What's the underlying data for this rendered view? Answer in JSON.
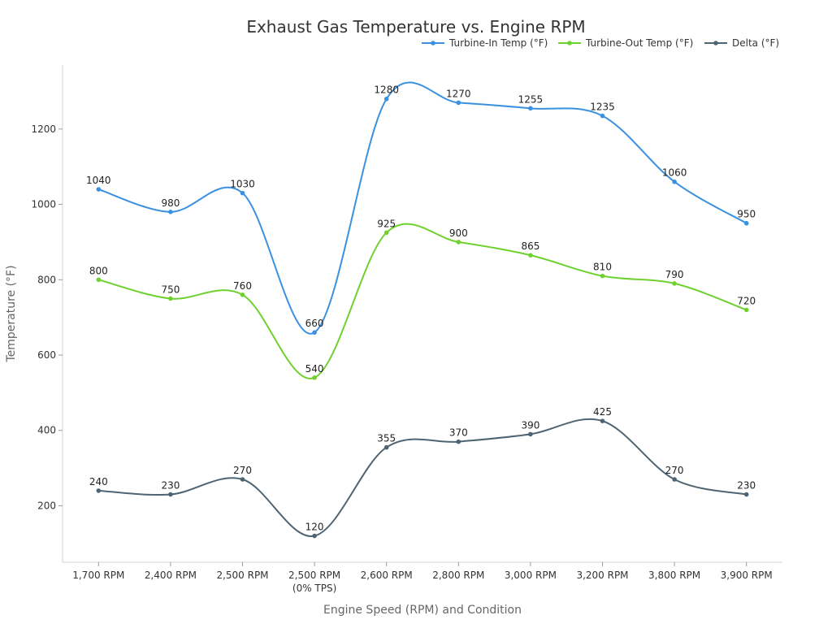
{
  "chart_data": {
    "type": "line",
    "title": "Exhaust Gas Temperature vs. Engine RPM",
    "xlabel": "Engine Speed (RPM) and Condition",
    "ylabel": "Temperature (°F)",
    "categories": [
      [
        "1,700 RPM"
      ],
      [
        "2,400 RPM"
      ],
      [
        "2,500 RPM"
      ],
      [
        "2,500 RPM",
        "(0% TPS)"
      ],
      [
        "2,600 RPM"
      ],
      [
        "2,800 RPM"
      ],
      [
        "3,000 RPM"
      ],
      [
        "3,200 RPM"
      ],
      [
        "3,800 RPM"
      ],
      [
        "3,900 RPM"
      ]
    ],
    "ylim": [
      50,
      1370
    ],
    "yticks": [
      200,
      400,
      600,
      800,
      1000,
      1200
    ],
    "grid": false,
    "legend_position": "top-right",
    "series": [
      {
        "name": "Turbine-In Temp (°F)",
        "color": "#3b91e0",
        "values": [
          1040,
          980,
          1030,
          660,
          1280,
          1270,
          1255,
          1235,
          1060,
          950
        ]
      },
      {
        "name": "Turbine-Out Temp (°F)",
        "color": "#6fd12f",
        "values": [
          800,
          750,
          760,
          540,
          925,
          900,
          865,
          810,
          790,
          720
        ]
      },
      {
        "name": "Delta (°F)",
        "color": "#4f6472",
        "values": [
          240,
          230,
          270,
          120,
          355,
          370,
          390,
          425,
          270,
          230
        ]
      }
    ]
  }
}
